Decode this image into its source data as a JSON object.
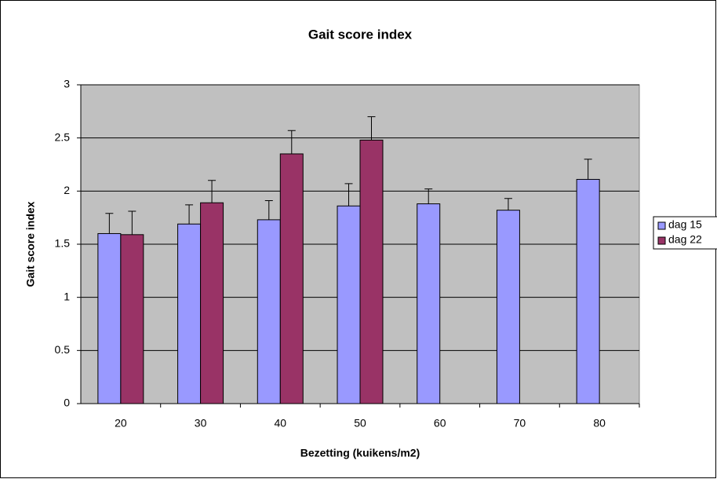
{
  "chart_data": {
    "type": "bar",
    "title": "Gait score index",
    "x_label": "Bezetting (kuikens/m2)",
    "y_label": "Gait score index",
    "categories": [
      "20",
      "30",
      "40",
      "50",
      "60",
      "70",
      "80"
    ],
    "series": [
      {
        "name": "dag 15",
        "color": "#9999ff",
        "values": [
          1.6,
          1.69,
          1.73,
          1.86,
          1.88,
          1.82,
          2.11
        ],
        "errors": [
          0.19,
          0.18,
          0.18,
          0.21,
          0.14,
          0.11,
          0.19
        ]
      },
      {
        "name": "dag 22",
        "color": "#993366",
        "values": [
          1.59,
          1.89,
          2.35,
          2.48,
          null,
          null,
          null
        ],
        "errors": [
          0.22,
          0.21,
          0.22,
          0.22,
          null,
          null,
          null
        ]
      }
    ],
    "ylim": [
      0,
      3
    ],
    "yticks": [
      0,
      0.5,
      1,
      1.5,
      2,
      2.5,
      3
    ],
    "grid": true,
    "legend": "right",
    "plot_background": "#c0c0c0"
  }
}
